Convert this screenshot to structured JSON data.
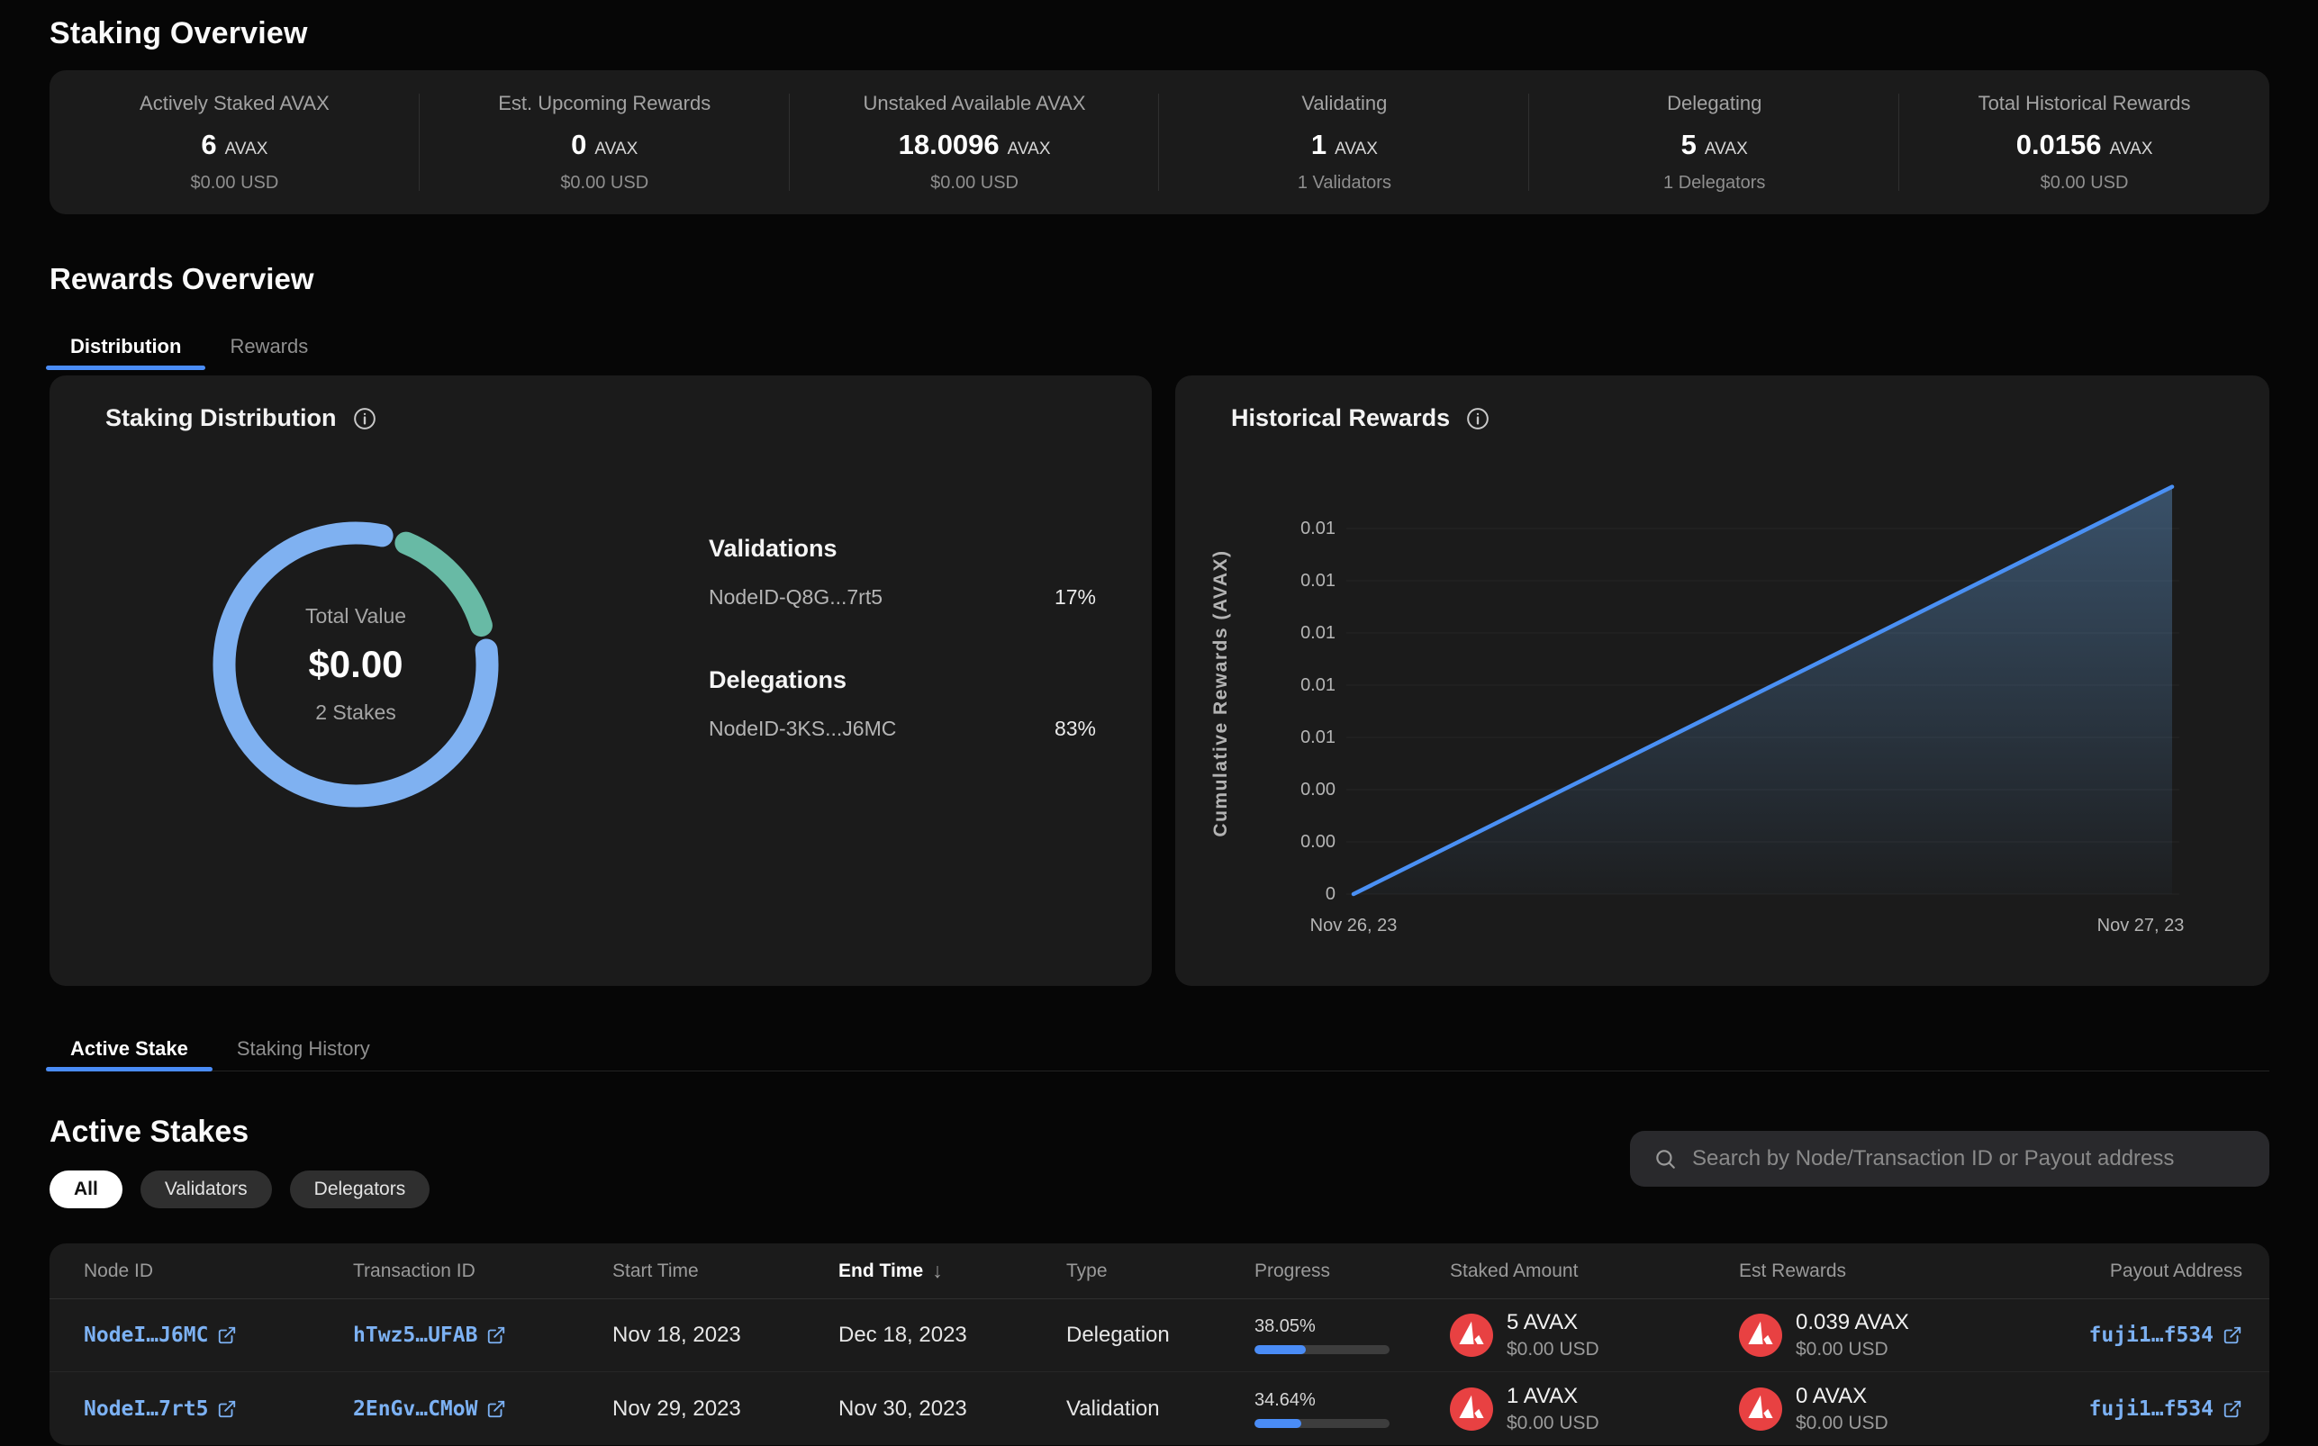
{
  "page": {
    "title": "Staking Overview"
  },
  "colors": {
    "page_bg": "#060606",
    "card_bg": "#1B1B1B",
    "accent_blue": "#4A8CF6",
    "donut_blue": "#7FB1F1",
    "donut_teal": "#68BAA5",
    "link_blue": "#7CB1F3",
    "avax_red": "#E84142",
    "chart_line": "#4A90F4"
  },
  "icons": [
    "info-icon",
    "search-icon",
    "external-link-icon",
    "avax-logo-icon",
    "sort-desc-icon"
  ],
  "stats": {
    "items": [
      {
        "label": "Actively Staked AVAX",
        "value": "6",
        "unit": "AVAX",
        "sub": "$0.00 USD"
      },
      {
        "label": "Est. Upcoming Rewards",
        "value": "0",
        "unit": "AVAX",
        "sub": "$0.00 USD"
      },
      {
        "label": "Unstaked Available AVAX",
        "value": "18.0096",
        "unit": "AVAX",
        "sub": "$0.00 USD"
      },
      {
        "label": "Validating",
        "value": "1",
        "unit": "AVAX",
        "sub": "1 Validators"
      },
      {
        "label": "Delegating",
        "value": "5",
        "unit": "AVAX",
        "sub": "1 Delegators"
      },
      {
        "label": "Total Historical Rewards",
        "value": "0.0156",
        "unit": "AVAX",
        "sub": "$0.00 USD"
      }
    ]
  },
  "rewards_overview": {
    "title": "Rewards Overview",
    "tabs": [
      {
        "label": "Distribution",
        "active": true
      },
      {
        "label": "Rewards",
        "active": false
      }
    ]
  },
  "distribution": {
    "title": "Staking Distribution",
    "center": {
      "label": "Total Value",
      "value": "$0.00",
      "sub": "2 Stakes"
    },
    "groups": [
      {
        "heading": "Validations",
        "items": [
          {
            "node": "NodeID-Q8G...7rt5",
            "percent": "17%"
          }
        ]
      },
      {
        "heading": "Delegations",
        "items": [
          {
            "node": "NodeID-3KS...J6MC",
            "percent": "83%"
          }
        ]
      }
    ]
  },
  "historical": {
    "title": "Historical Rewards",
    "ylabel": "Cumulative Rewards (AVAX)",
    "x_left": "Nov 26, 23",
    "x_right": "Nov 27, 23"
  },
  "chart_data": [
    {
      "type": "pie",
      "title": "Staking Distribution",
      "labels": [
        "NodeID-Q8G...7rt5 (Validations)",
        "NodeID-3KS...J6MC (Delegations)"
      ],
      "values": [
        17,
        83
      ],
      "unit": "%",
      "colors": [
        "#68BAA5",
        "#7FB1F1"
      ],
      "center_label": "Total Value $0.00 — 2 Stakes",
      "legend_position": "right"
    },
    {
      "type": "area",
      "title": "Historical Rewards",
      "ylabel": "Cumulative Rewards (AVAX)",
      "x": [
        "Nov 26, 23",
        "Nov 27, 23"
      ],
      "series": [
        {
          "name": "Cumulative Rewards",
          "values": [
            0,
            0.0156
          ]
        }
      ],
      "ylim": [
        0,
        0.016
      ],
      "y_tick_step": 0.002,
      "y_ticks_top_to_bottom": [
        "0.01",
        "0.01",
        "0.01",
        "0.01",
        "0.01",
        "0.00",
        "0.00",
        "0"
      ],
      "grid": true,
      "line_color": "#4A90F4"
    }
  ],
  "stake_tabs": {
    "tabs": [
      {
        "label": "Active Stake",
        "active": true
      },
      {
        "label": "Staking History",
        "active": false
      }
    ]
  },
  "active_stakes": {
    "title": "Active Stakes",
    "filters": [
      {
        "label": "All",
        "active": true
      },
      {
        "label": "Validators",
        "active": false
      },
      {
        "label": "Delegators",
        "active": false
      }
    ],
    "search_placeholder": "Search by Node/Transaction ID or Payout address",
    "table": {
      "columns": [
        "Node ID",
        "Transaction ID",
        "Start Time",
        "End Time",
        "Type",
        "Progress",
        "Staked Amount",
        "Est Rewards",
        "Payout Address"
      ],
      "sorted_column": "End Time",
      "sort_direction": "desc",
      "rows": [
        {
          "node_id": "NodeI…J6MC",
          "tx_id": "hTwz5…UFAB",
          "start": "Nov 18, 2023",
          "end": "Dec 18, 2023",
          "type": "Delegation",
          "progress": "38.05%",
          "progress_pct": 38.05,
          "staked": "5 AVAX",
          "staked_usd": "$0.00 USD",
          "est": "0.039 AVAX",
          "est_usd": "$0.00 USD",
          "payout": "fuji1…f534"
        },
        {
          "node_id": "NodeI…7rt5",
          "tx_id": "2EnGv…CMoW",
          "start": "Nov 29, 2023",
          "end": "Nov 30, 2023",
          "type": "Validation",
          "progress": "34.64%",
          "progress_pct": 34.64,
          "staked": "1 AVAX",
          "staked_usd": "$0.00 USD",
          "est": "0 AVAX",
          "est_usd": "$0.00 USD",
          "payout": "fuji1…f534"
        }
      ]
    }
  }
}
